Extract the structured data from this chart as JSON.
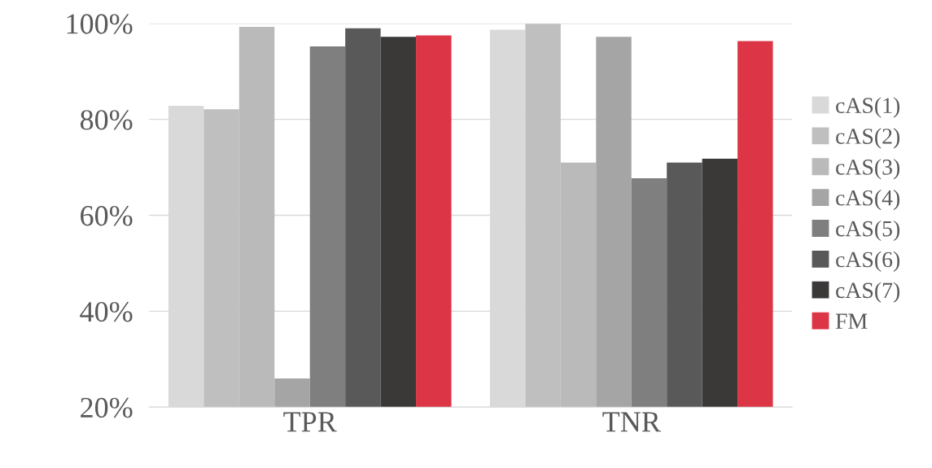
{
  "chart_data": {
    "type": "bar",
    "categories": [
      "TPR",
      "TNR"
    ],
    "series": [
      {
        "name": "cAS(1)",
        "color": "#d9d9d9",
        "values": [
          82.8,
          98.7
        ]
      },
      {
        "name": "cAS(2)",
        "color": "#bfbfbf",
        "values": [
          82.1,
          99.9
        ]
      },
      {
        "name": "cAS(3)",
        "color": "#bababa",
        "values": [
          99.3,
          71.0
        ]
      },
      {
        "name": "cAS(4)",
        "color": "#a5a5a5",
        "values": [
          26.0,
          97.2
        ]
      },
      {
        "name": "cAS(5)",
        "color": "#7f7f7f",
        "values": [
          95.2,
          67.7
        ]
      },
      {
        "name": "cAS(6)",
        "color": "#595959",
        "values": [
          99.0,
          71.0
        ]
      },
      {
        "name": "cAS(7)",
        "color": "#3b3838",
        "values": [
          97.2,
          71.8
        ]
      },
      {
        "name": "FM",
        "color": "#dc3545",
        "values": [
          97.5,
          96.3
        ]
      }
    ],
    "ylim": [
      20,
      100
    ],
    "yticks": [
      {
        "value": 20,
        "label": "20%"
      },
      {
        "value": 40,
        "label": "40%"
      },
      {
        "value": 60,
        "label": "60%"
      },
      {
        "value": 80,
        "label": "80%"
      },
      {
        "value": 100,
        "label": "100%"
      }
    ],
    "grid": "y",
    "legend": "right"
  }
}
